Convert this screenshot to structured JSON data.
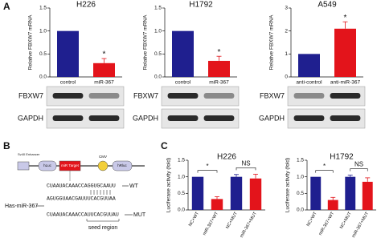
{
  "panels": [
    "A",
    "B",
    "C"
  ],
  "chart_data": [
    {
      "type": "bar",
      "title": "H226",
      "y_label": "Relative FBXW7 mRNA",
      "categories": [
        "control",
        "miR-367"
      ],
      "values": [
        1.0,
        0.3
      ],
      "errors": [
        null,
        0.1
      ],
      "colors": [
        "#1f1f8f",
        "#e3141b"
      ],
      "significance": [
        null,
        "*"
      ],
      "ylim": [
        0,
        1.5
      ],
      "yticks": [
        {
          "value": 0,
          "label": "0.0"
        },
        {
          "value": 0.5,
          "label": "0.5"
        },
        {
          "value": 1,
          "label": "1.0"
        },
        {
          "value": 1.5,
          "label": "1.5"
        }
      ]
    },
    {
      "type": "bar",
      "title": "H1792",
      "y_label": "Relative FBXW7 mRNA",
      "categories": [
        "control",
        "miR-367"
      ],
      "values": [
        1.0,
        0.35
      ],
      "errors": [
        null,
        0.1
      ],
      "colors": [
        "#1f1f8f",
        "#e3141b"
      ],
      "significance": [
        null,
        "*"
      ],
      "ylim": [
        0,
        1.5
      ],
      "yticks": [
        {
          "value": 0,
          "label": "0.0"
        },
        {
          "value": 0.5,
          "label": "0.5"
        },
        {
          "value": 1,
          "label": "1.0"
        },
        {
          "value": 1.5,
          "label": "1.5"
        }
      ]
    },
    {
      "type": "bar",
      "title": "A549",
      "y_label": "Relative FBXW7 mRNA",
      "categories": [
        "anti-control",
        "anti-miR-367"
      ],
      "values": [
        1.0,
        2.1
      ],
      "errors": [
        null,
        0.3
      ],
      "colors": [
        "#1f1f8f",
        "#e3141b"
      ],
      "significance": [
        null,
        "*"
      ],
      "ylim": [
        0,
        3
      ],
      "yticks": [
        0,
        1,
        2,
        3
      ]
    },
    {
      "type": "bar",
      "title": "H226",
      "y_label": "Luciferase activity (fold)",
      "categories": [
        "NC+WT",
        "miR-367+WT",
        "NC+MUT",
        "miR-367+MUT"
      ],
      "values": [
        1.0,
        0.33,
        1.0,
        0.95
      ],
      "errors": [
        null,
        0.07,
        0.07,
        0.13
      ],
      "colors": [
        "#1f1f8f",
        "#e3141b",
        "#1f1f8f",
        "#e3141b"
      ],
      "comparisons": [
        {
          "from": "NC+WT",
          "to": "miR-367+WT",
          "label": "*"
        },
        {
          "from": "NC+MUT",
          "to": "miR-367+MUT",
          "label": "NS"
        }
      ],
      "ylim": [
        0,
        1.5
      ],
      "yticks": [
        {
          "value": 0,
          "label": "0.0"
        },
        {
          "value": 0.5,
          "label": "0.5"
        },
        {
          "value": 1,
          "label": "1.0"
        },
        {
          "value": 1.5,
          "label": "1.5"
        }
      ]
    },
    {
      "type": "bar",
      "title": "H1792",
      "y_label": "Luciferase activity (fold)",
      "categories": [
        "NC+WT",
        "miR-367+WT",
        "NC+MUT",
        "miR-367+MUT"
      ],
      "values": [
        1.0,
        0.3,
        1.0,
        0.85
      ],
      "errors": [
        null,
        0.08,
        0.05,
        0.12
      ],
      "colors": [
        "#1f1f8f",
        "#e3141b",
        "#1f1f8f",
        "#e3141b"
      ],
      "comparisons": [
        {
          "from": "NC+WT",
          "to": "miR-367+WT",
          "label": "*"
        },
        {
          "from": "NC+MUT",
          "to": "miR-367+MUT",
          "label": "NS"
        }
      ],
      "ylim": [
        0,
        1.5
      ],
      "yticks": [
        {
          "value": 0,
          "label": "0.0"
        },
        {
          "value": 0.5,
          "label": "0.5"
        },
        {
          "value": 1,
          "label": "1.0"
        },
        {
          "value": 1.5,
          "label": "1.5"
        }
      ]
    }
  ],
  "blots": [
    {
      "rows": [
        "FBXW7",
        "GAPDH"
      ]
    },
    {
      "rows": [
        "FBXW7",
        "GAPDH"
      ]
    },
    {
      "rows": [
        "FBXW7",
        "GAPDH"
      ]
    }
  ],
  "diagram": {
    "enhancer": "Sv40 Enhancer",
    "elements": [
      "hLuc",
      "miR Target",
      "CMV",
      "hRluc"
    ],
    "wt": "CUAAUACAAACCAGGUGCAAUU",
    "wt_label": "WT",
    "mirna_name": "Has-miR-367",
    "mirna": "AGUGGUAACGAUUUCACGUUAA",
    "mut": "CUAAUACAAACCAUUCACGUUAU",
    "mut_label": "MUT",
    "seed": "seed region"
  }
}
